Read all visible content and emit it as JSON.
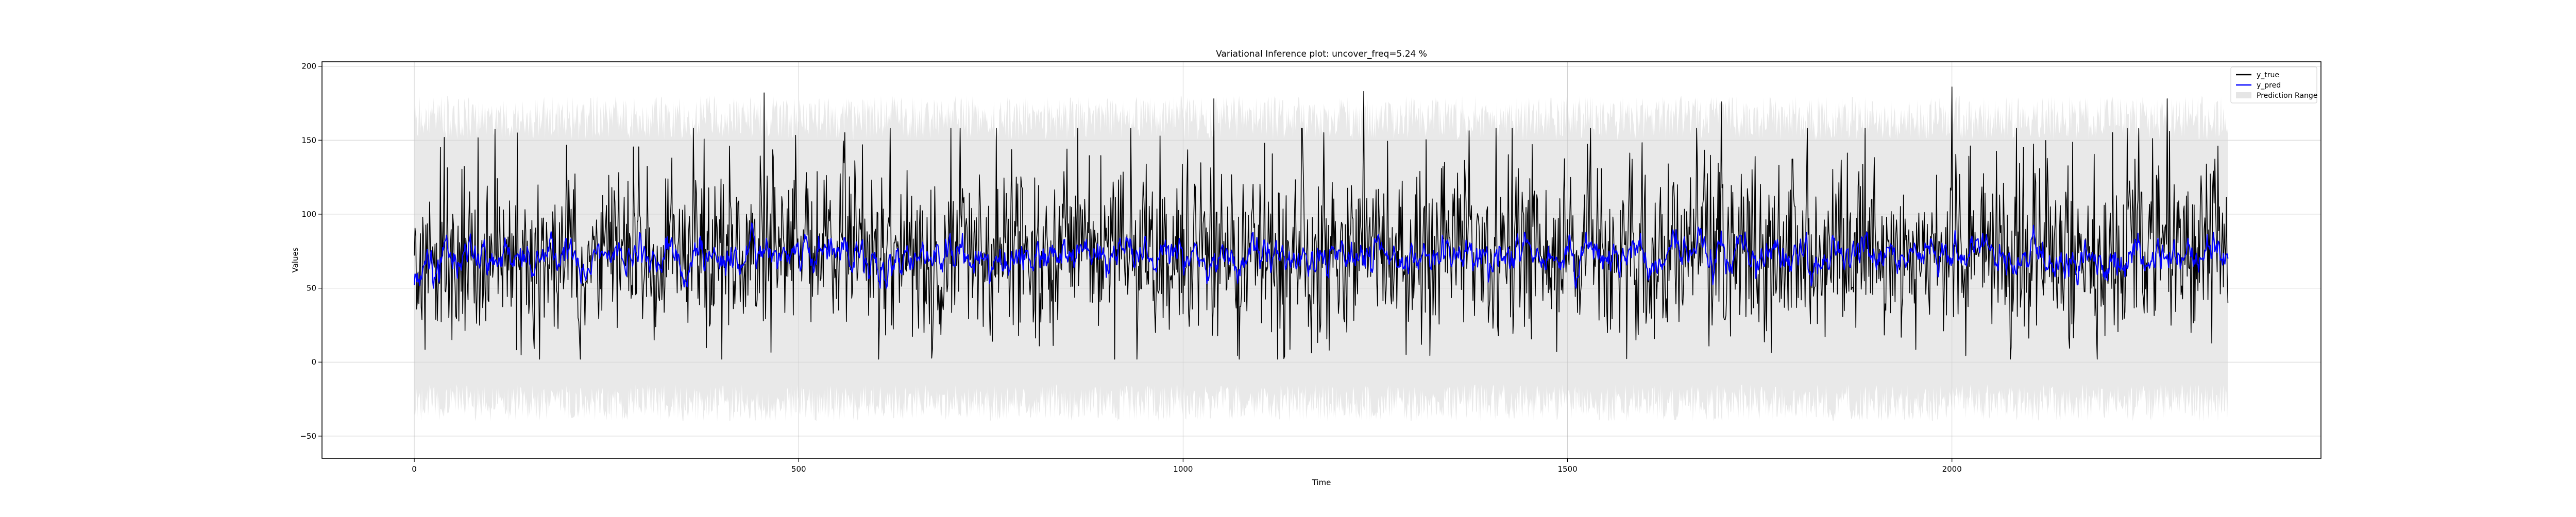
{
  "chart_data": {
    "type": "line",
    "title": "Variational Inference plot: uncover_freq=5.24 %",
    "xlabel": "Time",
    "ylabel": "Values",
    "xlim": [
      -120,
      2480
    ],
    "ylim": [
      -65,
      203
    ],
    "x_ticks": [
      0,
      500,
      1000,
      1500,
      2000
    ],
    "y_ticks": [
      -50,
      0,
      50,
      100,
      150,
      200
    ],
    "x_tick_labels": [
      "0",
      "500",
      "1000",
      "1500",
      "2000"
    ],
    "y_tick_labels": [
      "−50",
      "0",
      "50",
      "100",
      "150",
      "200"
    ],
    "grid": true,
    "legend_position": "top-right",
    "n_points": 2360,
    "series": [
      {
        "name": "y_true",
        "kind": "line",
        "color": "#000000",
        "typical_range": [
          5,
          140
        ],
        "max_value": 186,
        "min_value": 2,
        "peaks": [
          {
            "x": 455,
            "y": 182
          },
          {
            "x": 1040,
            "y": 178
          },
          {
            "x": 1235,
            "y": 183
          },
          {
            "x": 1700,
            "y": 176
          },
          {
            "x": 2000,
            "y": 186
          },
          {
            "x": 2280,
            "y": 178
          }
        ],
        "start_value": 72,
        "end_value": 40
      },
      {
        "name": "y_pred",
        "kind": "line",
        "color": "#0000ff",
        "typical_range": [
          55,
          95
        ],
        "mean": 72,
        "start_value": 52,
        "end_value": 70
      },
      {
        "name": "Prediction Range",
        "kind": "band",
        "color": "#d3d3d3",
        "typical_upper": [
          150,
          180
        ],
        "typical_lower": [
          -40,
          -15
        ]
      }
    ]
  }
}
